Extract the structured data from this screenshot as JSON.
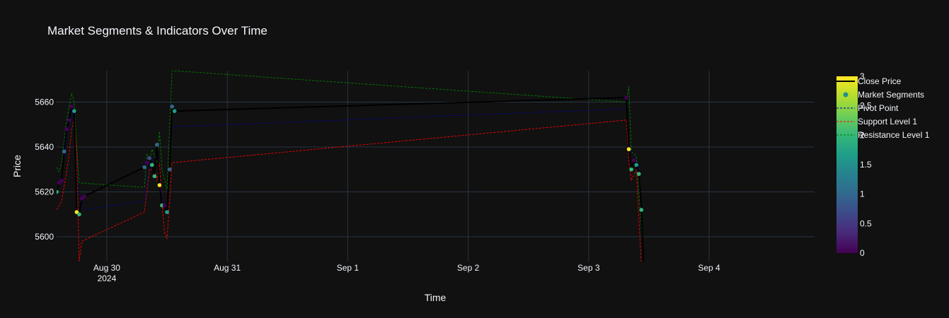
{
  "chart_data": {
    "type": "line",
    "title": "Market Segments & Indicators Over Time",
    "xlabel": "Time",
    "ylabel": "Price",
    "x_ticks": [
      {
        "date": "2024-08-30",
        "label": "Aug 30",
        "sub": "2024"
      },
      {
        "date": "2024-08-31",
        "label": "Aug 31",
        "sub": ""
      },
      {
        "date": "2024-09-01",
        "label": "Sep 1",
        "sub": ""
      },
      {
        "date": "2024-09-02",
        "label": "Sep 2",
        "sub": ""
      },
      {
        "date": "2024-09-03",
        "label": "Sep 3",
        "sub": ""
      },
      {
        "date": "2024-09-04",
        "label": "Sep 4",
        "sub": ""
      }
    ],
    "xlim": [
      "2024-08-29 14:00",
      "2024-09-04 21:00"
    ],
    "y_ticks": [
      5600,
      5620,
      5640,
      5660
    ],
    "ylim": [
      5589,
      5674
    ],
    "grid": true,
    "legend_position": "right",
    "colorbar": {
      "min": 0,
      "max": 3,
      "ticks": [
        0,
        0.5,
        1,
        1.5,
        2,
        2.5,
        3
      ],
      "colorscale": "Viridis"
    },
    "series": [
      {
        "name": "Close Price",
        "color": "#000000",
        "style": "solid",
        "x": [
          "2024-08-29 14:00",
          "2024-08-29 14:30",
          "2024-08-29 15:00",
          "2024-08-29 15:30",
          "2024-08-29 16:00",
          "2024-08-29 16:30",
          "2024-08-29 17:00",
          "2024-08-29 17:30",
          "2024-08-29 18:00",
          "2024-08-29 18:30",
          "2024-08-29 19:00",
          "2024-08-29 19:30",
          "2024-08-30 07:30",
          "2024-08-30 08:00",
          "2024-08-30 08:30",
          "2024-08-30 09:00",
          "2024-08-30 09:30",
          "2024-08-30 10:00",
          "2024-08-30 10:30",
          "2024-08-30 11:00",
          "2024-08-30 11:30",
          "2024-08-30 12:00",
          "2024-08-30 12:30",
          "2024-08-30 13:00",
          "2024-08-30 13:30",
          "2024-09-03 07:30",
          "2024-09-03 08:00",
          "2024-09-03 08:30",
          "2024-09-03 09:00",
          "2024-09-03 09:30",
          "2024-09-03 10:00",
          "2024-09-03 10:30",
          "2024-09-03 11:00"
        ],
        "values": [
          5620,
          5624,
          5625,
          5638,
          5648,
          5652,
          5658,
          5656,
          5611,
          5610,
          5617,
          5618,
          5631,
          5633,
          5635,
          5632,
          5627,
          5641,
          5623,
          5614,
          5614,
          5611,
          5630,
          5658,
          5656,
          5662,
          5639,
          5630,
          5634,
          5632,
          5628,
          5612,
          5585
        ]
      },
      {
        "name": "Market Segments",
        "style": "markers",
        "colorscale": "Viridis",
        "x": [
          "2024-08-29 14:00",
          "2024-08-29 14:30",
          "2024-08-29 15:00",
          "2024-08-29 15:30",
          "2024-08-29 16:00",
          "2024-08-29 16:30",
          "2024-08-29 17:00",
          "2024-08-29 17:30",
          "2024-08-29 18:00",
          "2024-08-29 18:30",
          "2024-08-29 19:00",
          "2024-08-29 19:30",
          "2024-08-30 07:30",
          "2024-08-30 08:00",
          "2024-08-30 08:30",
          "2024-08-30 09:00",
          "2024-08-30 09:30",
          "2024-08-30 10:00",
          "2024-08-30 10:30",
          "2024-08-30 11:00",
          "2024-08-30 11:30",
          "2024-08-30 12:00",
          "2024-08-30 12:30",
          "2024-08-30 13:00",
          "2024-08-30 13:30",
          "2024-09-03 07:30",
          "2024-09-03 08:00",
          "2024-09-03 08:30",
          "2024-09-03 09:00",
          "2024-09-03 09:30",
          "2024-09-03 10:00",
          "2024-09-03 10:30"
        ],
        "values": [
          5620,
          5624,
          5625,
          5638,
          5648,
          5652,
          5658,
          5656,
          5611,
          5610,
          5617,
          5618,
          5631,
          5633,
          5635,
          5632,
          5627,
          5641,
          5623,
          5614,
          5614,
          5611,
          5630,
          5658,
          5656,
          5662,
          5639,
          5630,
          5634,
          5632,
          5628,
          5612
        ],
        "segment": [
          2,
          0,
          0,
          1,
          0,
          0,
          0,
          1.5,
          3,
          2,
          0,
          0,
          1,
          0,
          0.5,
          2,
          2,
          1,
          3,
          2,
          0,
          1.5,
          1,
          1,
          1.5,
          0,
          3,
          2,
          0,
          1.5,
          2,
          2
        ]
      },
      {
        "name": "Pivot Point",
        "color": "#00008b",
        "style": "dashed",
        "x": [
          "2024-08-29 14:00",
          "2024-08-29 15:00",
          "2024-08-29 16:00",
          "2024-08-29 17:00",
          "2024-08-29 17:30",
          "2024-08-29 18:00",
          "2024-08-29 19:30",
          "2024-08-30 07:30",
          "2024-08-30 08:30",
          "2024-08-30 09:00",
          "2024-08-30 10:00",
          "2024-08-30 11:00",
          "2024-08-30 12:00",
          "2024-08-30 13:00",
          "2024-09-03 07:30",
          "2024-09-03 08:00",
          "2024-09-03 09:00",
          "2024-09-03 10:00",
          "2024-09-03 11:00"
        ],
        "values": [
          5621,
          5626,
          5642,
          5657,
          5651,
          5624,
          5612,
          5616,
          5633,
          5634,
          5636,
          5617,
          5612,
          5649,
          5657,
          5642,
          5634,
          5632,
          5590
        ]
      },
      {
        "name": "Support Level 1",
        "color": "#ff0000",
        "style": "dashed",
        "x": [
          "2024-08-29 14:00",
          "2024-08-29 15:00",
          "2024-08-29 16:00",
          "2024-08-29 16:30",
          "2024-08-29 17:00",
          "2024-08-29 17:30",
          "2024-08-29 18:00",
          "2024-08-29 18:30",
          "2024-08-29 19:00",
          "2024-08-30 07:30",
          "2024-08-30 08:30",
          "2024-08-30 09:30",
          "2024-08-30 10:00",
          "2024-08-30 10:30",
          "2024-08-30 11:00",
          "2024-08-30 11:30",
          "2024-08-30 12:00",
          "2024-08-30 13:00",
          "2024-09-03 07:30",
          "2024-09-03 08:00",
          "2024-09-03 08:30",
          "2024-09-03 09:30",
          "2024-09-03 10:30"
        ],
        "values": [
          5612,
          5616,
          5629,
          5637,
          5648,
          5652,
          5637,
          5589,
          5598,
          5611,
          5630,
          5630,
          5625,
          5633,
          5615,
          5602,
          5599,
          5633,
          5652,
          5634,
          5625,
          5630,
          5587
        ]
      },
      {
        "name": "Resistance Level 1",
        "color": "#008000",
        "style": "dashed",
        "x": [
          "2024-08-29 14:00",
          "2024-08-29 14:30",
          "2024-08-29 15:00",
          "2024-08-29 16:00",
          "2024-08-29 17:00",
          "2024-08-29 17:30",
          "2024-08-29 18:00",
          "2024-08-29 18:30",
          "2024-08-30 07:30",
          "2024-08-30 08:00",
          "2024-08-30 08:30",
          "2024-08-30 09:00",
          "2024-08-30 10:00",
          "2024-08-30 10:30",
          "2024-08-30 11:00",
          "2024-08-30 12:00",
          "2024-08-30 13:00",
          "2024-09-03 07:30",
          "2024-09-03 08:00",
          "2024-09-03 08:30",
          "2024-09-03 09:30",
          "2024-09-03 11:00"
        ],
        "values": [
          5631,
          5629,
          5633,
          5652,
          5664,
          5660,
          5640,
          5624,
          5622,
          5637,
          5634,
          5639,
          5633,
          5647,
          5630,
          5621,
          5674,
          5660,
          5667,
          5638,
          5636,
          5589
        ]
      }
    ]
  }
}
